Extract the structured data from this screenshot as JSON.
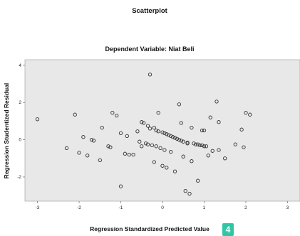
{
  "chart_data": {
    "type": "scatter",
    "title": "Scatterplot",
    "subtitle": "Dependent Variable: Niat Beli",
    "xlabel": "Regression Standardized Predicted Value",
    "ylabel": "Regression Studentized Residual",
    "xlim": [
      -3.3,
      3.3
    ],
    "ylim": [
      -3.3,
      4.3
    ],
    "xticks": [
      -3,
      -2,
      -1,
      0,
      1,
      2,
      3
    ],
    "yticks": [
      -2,
      0,
      2,
      4
    ],
    "x_tick_labels": [
      "-3",
      "-2",
      "-1",
      "0",
      "1",
      "2",
      "3"
    ],
    "y_tick_labels": [
      "-2",
      "0",
      "2",
      "4"
    ],
    "grid": false,
    "background_color": "#e8e8e8",
    "point_color": "#333333",
    "points": [
      [
        -3.0,
        1.1
      ],
      [
        -2.3,
        -0.45
      ],
      [
        -2.1,
        1.35
      ],
      [
        -2.0,
        -0.7
      ],
      [
        -1.9,
        0.15
      ],
      [
        -1.8,
        -0.85
      ],
      [
        -1.7,
        0.0
      ],
      [
        -1.65,
        -0.05
      ],
      [
        -1.5,
        -1.1
      ],
      [
        -1.45,
        0.65
      ],
      [
        -1.3,
        -0.35
      ],
      [
        -1.25,
        -0.4
      ],
      [
        -1.2,
        1.45
      ],
      [
        -1.1,
        1.3
      ],
      [
        -1.0,
        0.35
      ],
      [
        -1.0,
        -2.5
      ],
      [
        -0.9,
        -0.75
      ],
      [
        -0.85,
        0.2
      ],
      [
        -0.8,
        -0.8
      ],
      [
        -0.7,
        -0.8
      ],
      [
        -0.6,
        0.45
      ],
      [
        -0.55,
        -0.1
      ],
      [
        -0.5,
        -0.35
      ],
      [
        -0.5,
        0.95
      ],
      [
        -0.45,
        0.9
      ],
      [
        -0.4,
        -0.2
      ],
      [
        -0.35,
        -0.25
      ],
      [
        -0.35,
        0.75
      ],
      [
        -0.3,
        3.5
      ],
      [
        -0.3,
        0.6
      ],
      [
        -0.25,
        -0.3
      ],
      [
        -0.2,
        0.65
      ],
      [
        -0.2,
        -1.2
      ],
      [
        -0.15,
        0.5
      ],
      [
        -0.15,
        -0.35
      ],
      [
        -0.1,
        1.45
      ],
      [
        -0.1,
        0.45
      ],
      [
        -0.05,
        -0.45
      ],
      [
        0.0,
        0.4
      ],
      [
        0.0,
        -1.4
      ],
      [
        0.05,
        0.35
      ],
      [
        0.05,
        -0.55
      ],
      [
        0.1,
        0.3
      ],
      [
        0.1,
        -1.5
      ],
      [
        0.15,
        0.25
      ],
      [
        0.2,
        0.2
      ],
      [
        0.2,
        -0.65
      ],
      [
        0.25,
        0.15
      ],
      [
        0.3,
        -1.7
      ],
      [
        0.3,
        0.1
      ],
      [
        0.35,
        0.05
      ],
      [
        0.4,
        0.0
      ],
      [
        0.4,
        1.9
      ],
      [
        0.45,
        -0.05
      ],
      [
        0.45,
        0.9
      ],
      [
        0.5,
        -0.1
      ],
      [
        0.5,
        -0.9
      ],
      [
        0.55,
        -2.75
      ],
      [
        0.6,
        -0.15
      ],
      [
        0.6,
        -0.2
      ],
      [
        0.65,
        -2.9
      ],
      [
        0.7,
        0.65
      ],
      [
        0.7,
        -1.15
      ],
      [
        0.75,
        -0.2
      ],
      [
        0.8,
        -0.25
      ],
      [
        0.85,
        -0.25
      ],
      [
        0.85,
        -2.2
      ],
      [
        0.9,
        -0.3
      ],
      [
        0.95,
        0.5
      ],
      [
        0.95,
        -0.3
      ],
      [
        1.0,
        0.5
      ],
      [
        1.0,
        -0.35
      ],
      [
        1.05,
        -0.35
      ],
      [
        1.1,
        -0.85
      ],
      [
        1.15,
        1.2
      ],
      [
        1.2,
        -0.6
      ],
      [
        1.3,
        2.05
      ],
      [
        1.35,
        0.95
      ],
      [
        1.35,
        -0.55
      ],
      [
        1.5,
        -1.0
      ],
      [
        1.75,
        -0.25
      ],
      [
        1.9,
        0.55
      ],
      [
        1.95,
        -0.4
      ],
      [
        2.0,
        1.45
      ],
      [
        2.1,
        1.35
      ]
    ]
  }
}
